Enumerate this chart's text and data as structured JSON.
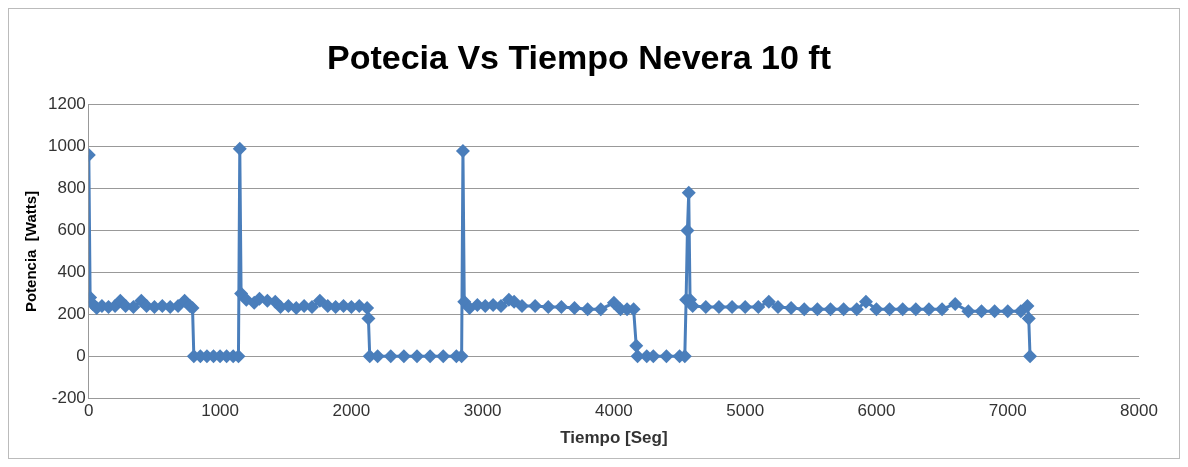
{
  "chart_data": {
    "type": "line",
    "title": "Potecia Vs Tiempo Nevera 10 ft",
    "xlabel": "Tiempo [Seg]",
    "ylabel": "Potencia  [Watts]",
    "x": [
      0,
      10,
      30,
      60,
      100,
      150,
      200,
      240,
      280,
      340,
      400,
      440,
      500,
      560,
      620,
      680,
      730,
      770,
      790,
      800,
      850,
      900,
      950,
      1000,
      1050,
      1100,
      1140,
      1150,
      1160,
      1200,
      1260,
      1300,
      1360,
      1420,
      1460,
      1520,
      1580,
      1640,
      1700,
      1760,
      1820,
      1880,
      1940,
      2000,
      2060,
      2120,
      2130,
      2140,
      2200,
      2300,
      2400,
      2500,
      2600,
      2700,
      2800,
      2840,
      2850,
      2860,
      2900,
      2960,
      3020,
      3080,
      3140,
      3200,
      3240,
      3300,
      3400,
      3500,
      3600,
      3700,
      3800,
      3900,
      4000,
      4050,
      4100,
      4150,
      4170,
      4180,
      4250,
      4300,
      4400,
      4500,
      4540,
      4550,
      4560,
      4570,
      4580,
      4600,
      4700,
      4800,
      4900,
      5000,
      5100,
      5180,
      5250,
      5350,
      5450,
      5550,
      5650,
      5750,
      5850,
      5920,
      6000,
      6100,
      6200,
      6300,
      6400,
      6500,
      6600,
      6700,
      6800,
      6900,
      7000,
      7100,
      7150,
      7160,
      7170
    ],
    "series": [
      {
        "color": "#4a7ebb",
        "values": [
          960,
          280,
          250,
          230,
          240,
          235,
          240,
          265,
          240,
          235,
          265,
          240,
          235,
          240,
          235,
          240,
          265,
          240,
          230,
          0,
          0,
          0,
          0,
          0,
          0,
          0,
          0,
          990,
          300,
          270,
          255,
          275,
          265,
          260,
          235,
          240,
          230,
          240,
          235,
          265,
          240,
          235,
          240,
          235,
          240,
          230,
          180,
          0,
          0,
          0,
          0,
          0,
          0,
          0,
          0,
          0,
          980,
          260,
          230,
          245,
          240,
          245,
          240,
          270,
          260,
          240,
          240,
          235,
          235,
          230,
          225,
          225,
          255,
          225,
          225,
          225,
          50,
          0,
          0,
          0,
          0,
          0,
          0,
          270,
          600,
          780,
          270,
          240,
          235,
          235,
          235,
          235,
          235,
          260,
          235,
          230,
          225,
          225,
          225,
          225,
          225,
          260,
          225,
          225,
          225,
          225,
          225,
          225,
          250,
          215,
          215,
          215,
          215,
          215,
          240,
          180,
          0
        ]
      }
    ],
    "xlim": [
      0,
      8000
    ],
    "xticks": [
      0,
      1000,
      2000,
      3000,
      4000,
      5000,
      6000,
      7000,
      8000
    ],
    "ylim": [
      -200,
      1200
    ],
    "yticks": [
      -200,
      0,
      200,
      400,
      600,
      800,
      1000,
      1200
    ],
    "grid": "y",
    "marker": "diamond",
    "line_style": "solid"
  }
}
